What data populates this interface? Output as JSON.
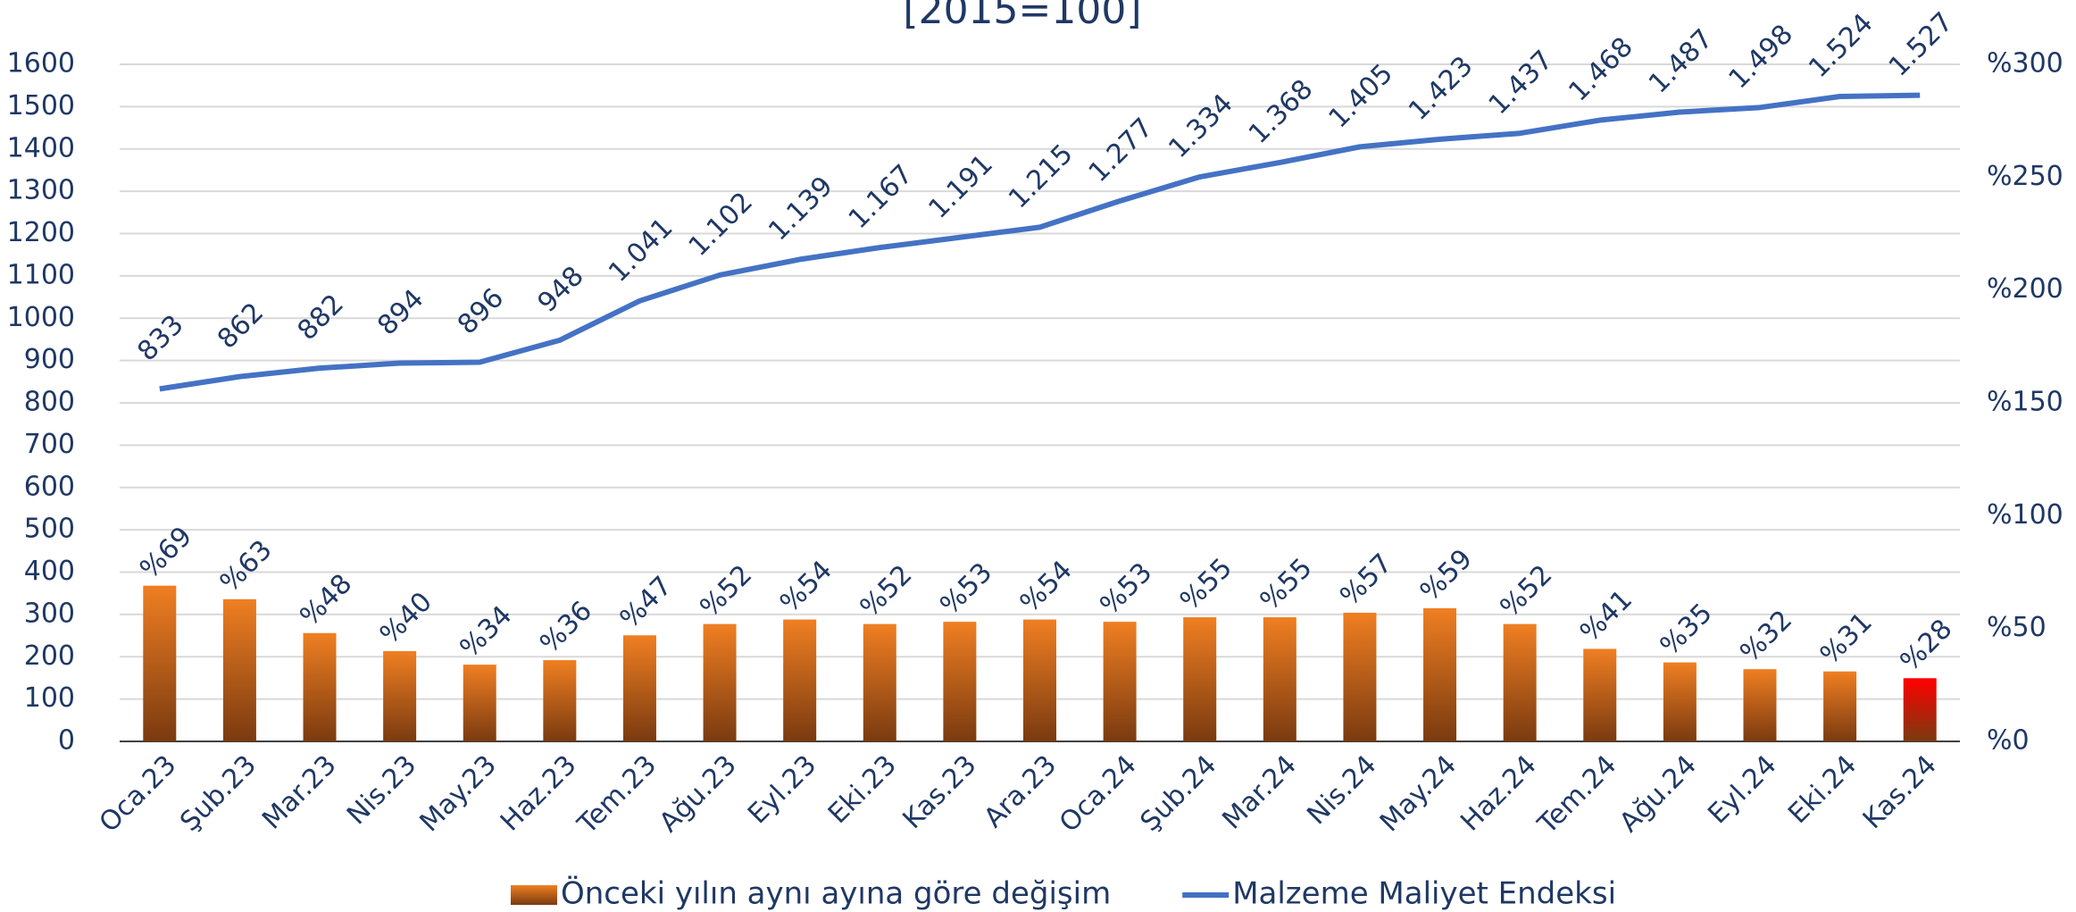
{
  "chart_data": {
    "type": "bar_line",
    "title": "[2015=100]",
    "categories": [
      "Oca.23",
      "Şub.23",
      "Mar.23",
      "Nis.23",
      "May.23",
      "Haz.23",
      "Tem.23",
      "Ağu.23",
      "Eyl.23",
      "Eki.23",
      "Kas.23",
      "Ara.23",
      "Oca.24",
      "Şub.24",
      "Mar.24",
      "Nis.24",
      "May.24",
      "Haz.24",
      "Tem.24",
      "Ağu.24",
      "Eyl.24",
      "Eki.24",
      "Kas.24"
    ],
    "series": [
      {
        "name": "Önceki yılın aynı ayına göre değişim",
        "type": "bar",
        "axis": "y2",
        "color": "#f07f22",
        "colors": [
          "#f07f22",
          "#f07f22",
          "#f07f22",
          "#f07f22",
          "#f07f22",
          "#f07f22",
          "#f07f22",
          "#f07f22",
          "#f07f22",
          "#f07f22",
          "#f07f22",
          "#f07f22",
          "#f07f22",
          "#f07f22",
          "#f07f22",
          "#f07f22",
          "#f07f22",
          "#f07f22",
          "#f07f22",
          "#f07f22",
          "#f07f22",
          "#f07f22",
          "#ff0000"
        ],
        "values": [
          69,
          63,
          48,
          40,
          34,
          36,
          47,
          52,
          54,
          52,
          53,
          54,
          53,
          55,
          55,
          57,
          59,
          52,
          41,
          35,
          32,
          31,
          28
        ],
        "value_labels": [
          "%69",
          "%63",
          "%48",
          "%40",
          "%34",
          "%36",
          "%47",
          "%52",
          "%54",
          "%52",
          "%53",
          "%54",
          "%53",
          "%55",
          "%55",
          "%57",
          "%59",
          "%52",
          "%41",
          "%35",
          "%32",
          "%31",
          "%28"
        ]
      },
      {
        "name": "Malzeme Maliyet Endeksi",
        "type": "line",
        "axis": "y",
        "color": "#4472c4",
        "values": [
          833,
          862,
          882,
          894,
          896,
          948,
          1041,
          1102,
          1139,
          1167,
          1191,
          1215,
          1277,
          1334,
          1368,
          1405,
          1423,
          1437,
          1468,
          1487,
          1498,
          1524,
          1527
        ],
        "value_labels": [
          "833",
          "862",
          "882",
          "894",
          "896",
          "948",
          "1.041",
          "1.102",
          "1.139",
          "1.167",
          "1.191",
          "1.215",
          "1.277",
          "1.334",
          "1.368",
          "1.405",
          "1.423",
          "1.437",
          "1.468",
          "1.487",
          "1.498",
          "1.524",
          "1.527"
        ]
      }
    ],
    "ylim": [
      0,
      1600
    ],
    "yticks": [
      0,
      100,
      200,
      300,
      400,
      500,
      600,
      700,
      800,
      900,
      1000,
      1100,
      1200,
      1300,
      1400,
      1500,
      1600
    ],
    "y2lim": [
      0,
      300
    ],
    "y2ticks": [
      {
        "value": 0,
        "label": "%0"
      },
      {
        "value": 50,
        "label": "%50"
      },
      {
        "value": 100,
        "label": "%100"
      },
      {
        "value": 150,
        "label": "%150"
      },
      {
        "value": 200,
        "label": "%200"
      },
      {
        "value": 250,
        "label": "%250"
      },
      {
        "value": 300,
        "label": "%300"
      }
    ],
    "grid": true,
    "legend": "bottom"
  }
}
